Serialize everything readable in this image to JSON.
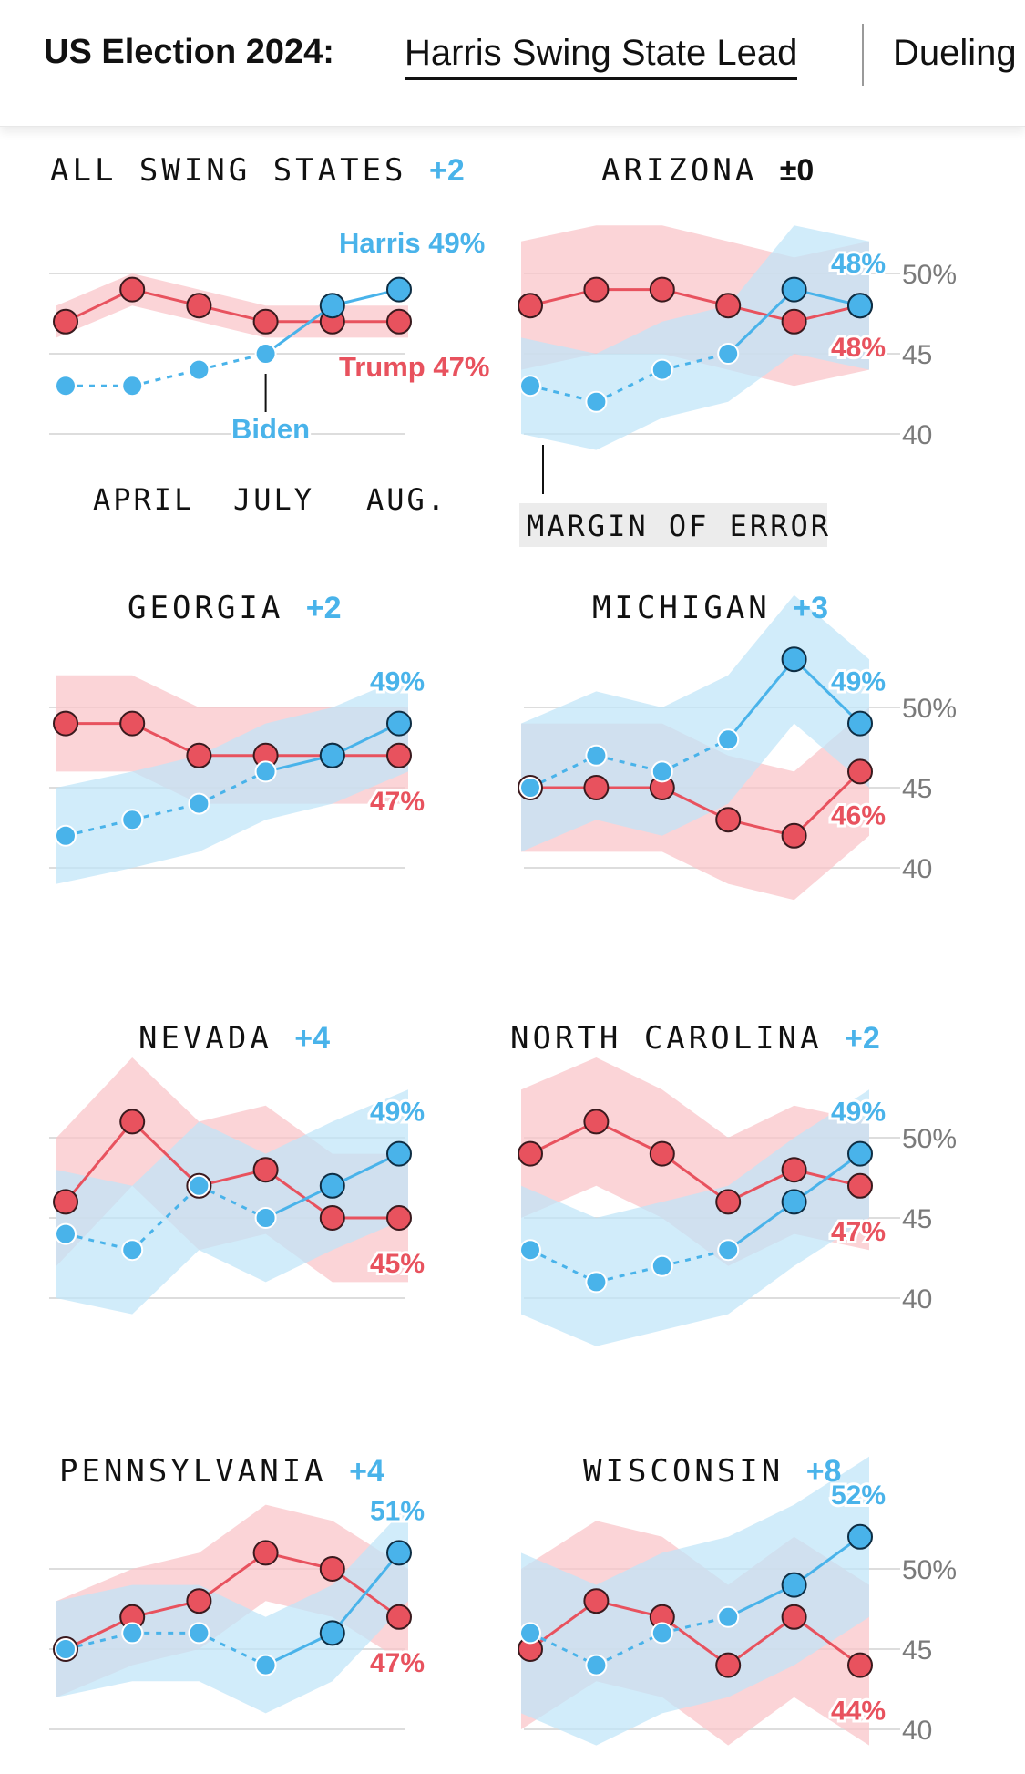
{
  "header": {
    "title": "US Election 2024:",
    "active_story": "Harris Swing State Lead",
    "next_story": "Dueling"
  },
  "colors": {
    "harris": "#49b3ea",
    "trump": "#e8525e",
    "harris_band": "#bfe4f8",
    "trump_band": "#fac3c8",
    "gridline": "#dddddd",
    "axis_text": "#7a7a7a",
    "title_text": "#111111"
  },
  "chart_data": {
    "type": "line",
    "description_title": "US Election 2024: Harris Swing State Lead",
    "y_ticks": [
      {
        "value": 50,
        "label": "50%"
      },
      {
        "value": 45,
        "label": "45"
      },
      {
        "value": 40,
        "label": "40"
      }
    ],
    "x_labels": [
      "APRIL",
      "JULY",
      "AUG."
    ],
    "annotations": {
      "harris": "Harris 49%",
      "trump": "Trump 47%",
      "biden": "Biden",
      "margin": "MARGIN OF ERROR"
    },
    "panels": [
      {
        "name": "ALL SWING STATES",
        "lead": "+2",
        "dem": [
          43,
          43,
          44,
          45,
          48,
          49
        ],
        "rep": [
          47,
          49,
          48,
          47,
          47,
          47
        ],
        "dem_band": null,
        "rep_band": {
          "lo": [
            46,
            48,
            47,
            46,
            46,
            46
          ],
          "hi": [
            48,
            50,
            49,
            48,
            48,
            48
          ]
        },
        "dem_labels": [],
        "rep_labels": []
      },
      {
        "name": "ARIZONA",
        "lead": "±0",
        "dem": [
          43,
          42,
          44,
          45,
          49,
          48
        ],
        "rep": [
          48,
          49,
          49,
          48,
          47,
          48
        ],
        "dem_band": {
          "lo": [
            40,
            39,
            41,
            42,
            45,
            44
          ],
          "hi": [
            46,
            45,
            47,
            48,
            53,
            52
          ]
        },
        "rep_band": {
          "lo": [
            44,
            45,
            45,
            44,
            43,
            44
          ],
          "hi": [
            52,
            53,
            53,
            52,
            51,
            52
          ]
        },
        "dem_labels": [
          "48%"
        ],
        "rep_labels": [
          "48%"
        ]
      },
      {
        "name": "GEORGIA",
        "lead": "+2",
        "dem": [
          42,
          43,
          44,
          46,
          47,
          49
        ],
        "rep": [
          49,
          49,
          47,
          47,
          47,
          47
        ],
        "dem_band": {
          "lo": [
            39,
            40,
            41,
            43,
            44,
            46
          ],
          "hi": [
            45,
            46,
            47,
            49,
            50,
            52
          ]
        },
        "rep_band": {
          "lo": [
            46,
            46,
            44,
            44,
            44,
            44
          ],
          "hi": [
            52,
            52,
            50,
            50,
            50,
            50
          ]
        },
        "dem_labels": [
          "49%"
        ],
        "rep_labels": [
          "47%"
        ]
      },
      {
        "name": "MICHIGAN",
        "lead": "+3",
        "dem": [
          45,
          47,
          46,
          48,
          53,
          49
        ],
        "rep": [
          45,
          45,
          45,
          43,
          42,
          46
        ],
        "dem_band": {
          "lo": [
            41,
            43,
            42,
            44,
            49,
            45
          ],
          "hi": [
            49,
            51,
            50,
            52,
            57,
            53
          ]
        },
        "rep_band": {
          "lo": [
            41,
            41,
            41,
            39,
            38,
            42
          ],
          "hi": [
            49,
            49,
            49,
            47,
            46,
            50
          ]
        },
        "dem_labels": [
          "49%"
        ],
        "rep_labels": [
          "46%"
        ]
      },
      {
        "name": "NEVADA",
        "lead": "+4",
        "dem": [
          44,
          43,
          47,
          45,
          47,
          49
        ],
        "rep": [
          46,
          51,
          47,
          48,
          45,
          45
        ],
        "dem_band": {
          "lo": [
            40,
            39,
            43,
            41,
            43,
            45
          ],
          "hi": [
            48,
            47,
            51,
            49,
            51,
            53
          ]
        },
        "rep_band": {
          "lo": [
            42,
            47,
            43,
            44,
            41,
            41
          ],
          "hi": [
            50,
            55,
            51,
            52,
            49,
            49
          ]
        },
        "dem_labels": [
          "49%"
        ],
        "rep_labels": [
          "45%"
        ]
      },
      {
        "name": "NORTH CAROLINA",
        "lead": "+2",
        "dem": [
          43,
          41,
          42,
          43,
          46,
          49
        ],
        "rep": [
          49,
          51,
          49,
          46,
          48,
          47
        ],
        "dem_band": {
          "lo": [
            39,
            37,
            38,
            39,
            42,
            45
          ],
          "hi": [
            47,
            45,
            46,
            47,
            50,
            53
          ]
        },
        "rep_band": {
          "lo": [
            45,
            47,
            45,
            42,
            44,
            43
          ],
          "hi": [
            53,
            55,
            53,
            50,
            52,
            51
          ]
        },
        "dem_labels": [
          "49%"
        ],
        "rep_labels": [
          "47%"
        ]
      },
      {
        "name": "PENNSYLVANIA",
        "lead": "+4",
        "dem": [
          45,
          46,
          46,
          44,
          46,
          51
        ],
        "rep": [
          45,
          47,
          48,
          51,
          50,
          47
        ],
        "dem_band": {
          "lo": [
            42,
            43,
            43,
            41,
            43,
            48
          ],
          "hi": [
            48,
            49,
            49,
            47,
            49,
            54
          ]
        },
        "rep_band": {
          "lo": [
            42,
            44,
            45,
            48,
            47,
            44
          ],
          "hi": [
            48,
            50,
            51,
            54,
            53,
            50
          ]
        },
        "dem_labels": [
          "51%"
        ],
        "rep_labels": [
          "47%"
        ]
      },
      {
        "name": "WISCONSIN",
        "lead": "+8",
        "dem": [
          46,
          44,
          46,
          47,
          49,
          52
        ],
        "rep": [
          45,
          48,
          47,
          44,
          47,
          44
        ],
        "dem_band": {
          "lo": [
            41,
            39,
            41,
            42,
            44,
            47
          ],
          "hi": [
            51,
            49,
            51,
            52,
            54,
            57
          ]
        },
        "rep_band": {
          "lo": [
            40,
            43,
            42,
            39,
            42,
            39
          ],
          "hi": [
            50,
            53,
            52,
            49,
            52,
            49
          ]
        },
        "dem_labels": [
          "52%"
        ],
        "rep_labels": [
          "44%"
        ]
      }
    ]
  }
}
